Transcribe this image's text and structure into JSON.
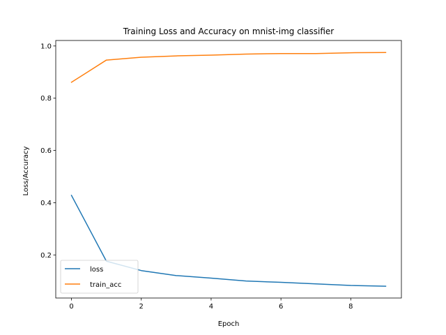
{
  "chart_data": {
    "type": "line",
    "title": "Training Loss and Accuracy on mnist-img classifier",
    "xlabel": "Epoch",
    "ylabel": "Loss/Accuracy",
    "x": [
      0,
      1,
      2,
      3,
      4,
      5,
      6,
      7,
      8,
      9
    ],
    "xlim": [
      -0.45,
      9.45
    ],
    "ylim": [
      0.035,
      1.021
    ],
    "xticks": [
      0,
      2,
      4,
      6,
      8
    ],
    "yticks": [
      0.2,
      0.4,
      0.6,
      0.8,
      1.0
    ],
    "xtick_labels": [
      "0",
      "2",
      "4",
      "6",
      "8"
    ],
    "ytick_labels": [
      "0.2",
      "0.4",
      "0.6",
      "0.8",
      "1.0"
    ],
    "grid": false,
    "legend_position": "lower-left",
    "series": [
      {
        "name": "loss",
        "color": "#1f77b4",
        "values": [
          0.428,
          0.176,
          0.14,
          0.121,
          0.111,
          0.1,
          0.095,
          0.089,
          0.083,
          0.08
        ]
      },
      {
        "name": "train_acc",
        "color": "#ff7f0e",
        "values": [
          0.861,
          0.946,
          0.957,
          0.962,
          0.965,
          0.969,
          0.971,
          0.971,
          0.974,
          0.975
        ]
      }
    ]
  }
}
